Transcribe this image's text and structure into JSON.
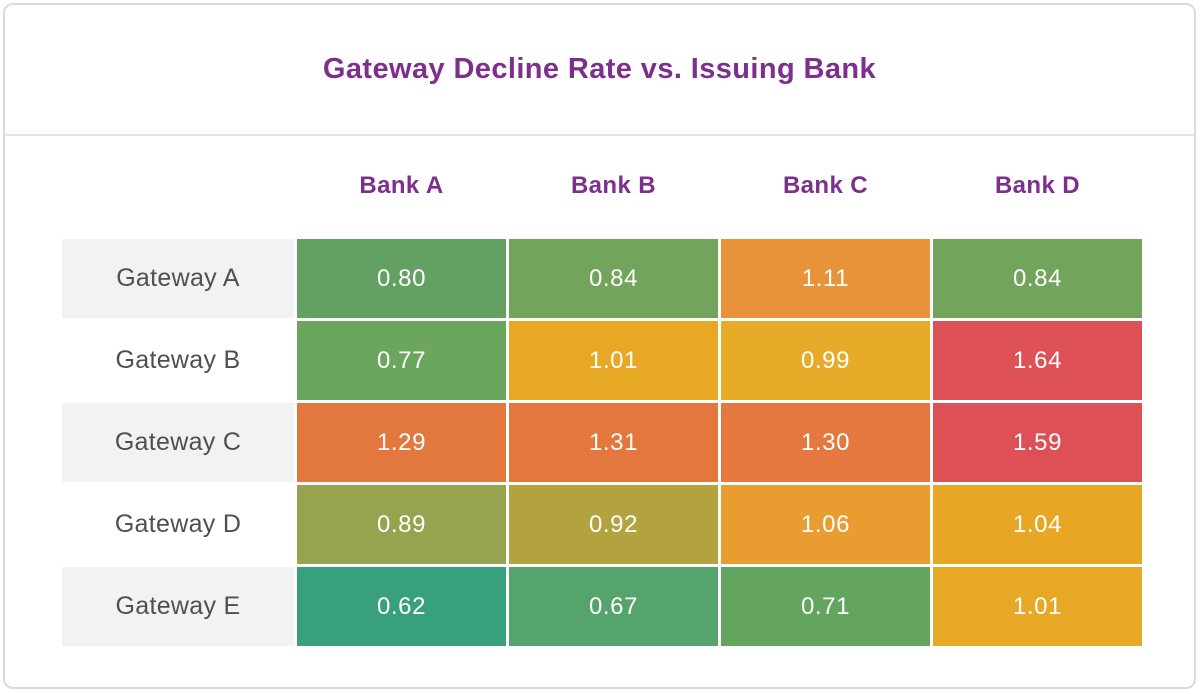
{
  "title": "Gateway Decline Rate vs. Issuing Bank",
  "colors": {
    "title_text": "#7d2f8e",
    "column_header_text": "#7d2f8e",
    "row_label_text": "#4f4f52",
    "row_stripe": "#f2f2f4",
    "card_border": "#d9d9de",
    "header_divider": "#e4e4e8",
    "cell_text": "#ffffff"
  },
  "chart_data": {
    "type": "heatmap",
    "title": "Gateway Decline Rate vs. Issuing Bank",
    "x_labels": [
      "Bank A",
      "Bank B",
      "Bank C",
      "Bank D"
    ],
    "y_labels": [
      "Gateway A",
      "Gateway B",
      "Gateway C",
      "Gateway D",
      "Gateway E"
    ],
    "values": [
      [
        0.8,
        0.84,
        1.11,
        0.84
      ],
      [
        0.77,
        1.01,
        0.99,
        1.64
      ],
      [
        1.29,
        1.31,
        1.3,
        1.59
      ],
      [
        0.89,
        0.92,
        1.06,
        1.04
      ],
      [
        0.62,
        0.67,
        0.71,
        1.01
      ]
    ],
    "value_format": "0.00",
    "cell_colors": [
      [
        "#63a163",
        "#72a45b",
        "#e8923a",
        "#72a45b"
      ],
      [
        "#6ba55e",
        "#e7a826",
        "#e7aa29",
        "#de5257"
      ],
      [
        "#e2783e",
        "#e3773d",
        "#e4783f",
        "#dd5156"
      ],
      [
        "#97a34f",
        "#b2a33e",
        "#e99c30",
        "#e7a623"
      ],
      [
        "#38a07c",
        "#55a46b",
        "#63a45f",
        "#e6a825"
      ]
    ],
    "color_scale": {
      "min": 0.62,
      "max": 1.64,
      "low_color": "#38a07c",
      "mid_color": "#e7a826",
      "high_color": "#dd5156"
    },
    "legend": "none",
    "grid": "off"
  }
}
